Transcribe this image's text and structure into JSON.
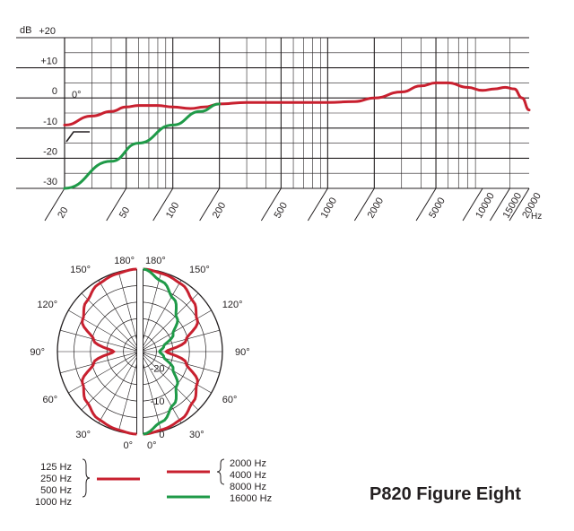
{
  "chart_data": [
    {
      "type": "line",
      "xscale": "log",
      "xlabel": "Hz",
      "ylabel": "dB",
      "xlim": [
        20,
        20000
      ],
      "ylim": [
        -30,
        20
      ],
      "x_ticks": [
        "20",
        "50",
        "100",
        "200",
        "500",
        "1000",
        "2000",
        "5000",
        "10000",
        "15000",
        "20000"
      ],
      "y_ticks": [
        "+20",
        "+10",
        "0",
        "-10",
        "-20",
        "-30"
      ],
      "grid": true,
      "inset_labels": {
        "angle": "0°"
      },
      "series": [
        {
          "color": "#c8202f",
          "x": [
            20,
            30,
            40,
            50,
            60,
            80,
            100,
            130,
            160,
            200,
            300,
            500,
            1000,
            1500,
            2000,
            3000,
            4000,
            5000,
            6000,
            8000,
            10000,
            12000,
            14000,
            16000,
            18000,
            20000
          ],
          "y": [
            -9,
            -6,
            -4.5,
            -3,
            -2.5,
            -2.5,
            -3,
            -3.5,
            -3,
            -2,
            -1.5,
            -1.5,
            -1.5,
            -1.2,
            0,
            2,
            4,
            5,
            5,
            3.5,
            2.5,
            3,
            3.5,
            3,
            0,
            -4
          ]
        },
        {
          "color": "#1f9a48",
          "x": [
            20,
            40,
            60,
            100,
            150,
            200
          ],
          "y": [
            -30,
            -21,
            -15,
            -9,
            -4.5,
            -2
          ]
        }
      ]
    },
    {
      "type": "polar",
      "angle_labels": [
        "180°",
        "150°",
        "120°",
        "90°",
        "60°",
        "30°",
        "0°"
      ],
      "radial_labels": [
        "-20",
        "-10",
        "0"
      ],
      "rlim": [
        -25,
        0
      ],
      "angles_deg": [
        0,
        15,
        30,
        45,
        60,
        75,
        90,
        105,
        120,
        135,
        150,
        165,
        180
      ],
      "left_series": [
        {
          "name": "125 Hz, 250 Hz, 500 Hz, 1000 Hz",
          "color": "#c8202f",
          "values": [
            0,
            -0.7,
            -1.5,
            -3.5,
            -6,
            -11.5,
            -18,
            -11.5,
            -6,
            -3.5,
            -1.5,
            -0.7,
            0
          ]
        }
      ],
      "right_series": [
        {
          "name": "2000 Hz, 4000 Hz, 8000 Hz",
          "color": "#c8202f",
          "values": [
            0,
            -0.7,
            -1.5,
            -3.5,
            -6,
            -11.5,
            -18,
            -11.5,
            -6,
            -3.5,
            -1.5,
            -0.7,
            0
          ]
        },
        {
          "name": "16000 Hz",
          "color": "#1f9a48",
          "values": [
            0,
            -3,
            -6.5,
            -10.5,
            -14.5,
            -18.5,
            -20,
            -18.5,
            -14.5,
            -10.5,
            -6.5,
            -3,
            0
          ]
        }
      ],
      "legend": {
        "left_labels": [
          "125 Hz",
          "250 Hz",
          "500 Hz",
          "1000 Hz"
        ],
        "right_labels": [
          "2000 Hz",
          "4000 Hz",
          "8000 Hz",
          "16000 Hz"
        ],
        "swatches": [
          {
            "color": "#c8202f"
          },
          {
            "color": "#c8202f"
          },
          {
            "color": "#1f9a48"
          }
        ]
      }
    }
  ],
  "title": "P820 Figure Eight"
}
